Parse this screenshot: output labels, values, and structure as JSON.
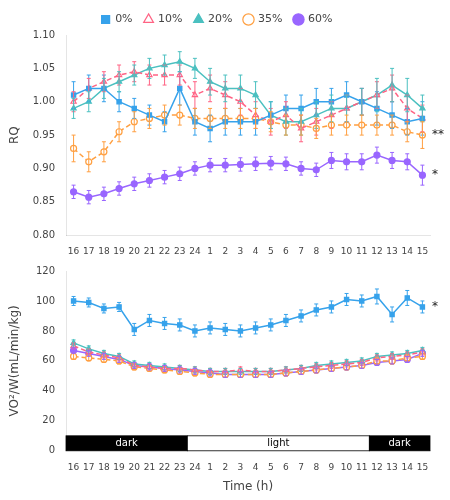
{
  "chart_data": [
    {
      "type": "line",
      "categories": [
        "16",
        "17",
        "18",
        "19",
        "20",
        "21",
        "22",
        "23",
        "24",
        "1",
        "2",
        "3",
        "4",
        "5",
        "6",
        "7",
        "8",
        "9",
        "10",
        "11",
        "12",
        "13",
        "14",
        "15"
      ],
      "series": [
        {
          "name": "0%",
          "marker": "square",
          "line_style": "solid",
          "values": [
            1.01,
            1.02,
            1.02,
            1.0,
            0.99,
            0.98,
            0.97,
            1.02,
            0.97,
            0.96,
            0.97,
            0.97,
            0.97,
            0.98,
            0.99,
            0.99,
            1.0,
            1.0,
            1.01,
            1.0,
            0.99,
            0.98,
            0.97,
            0.975
          ],
          "errors": [
            0.02,
            0.02,
            0.02,
            0.015,
            0.015,
            0.015,
            0.015,
            0.025,
            0.02,
            0.02,
            0.02,
            0.02,
            0.02,
            0.02,
            0.02,
            0.02,
            0.02,
            0.02,
            0.02,
            0.02,
            0.025,
            0.02,
            0.02,
            0.025
          ]
        },
        {
          "name": "10%",
          "marker": "triangle-open",
          "line_style": "dashed",
          "values": [
            1.0,
            1.02,
            1.03,
            1.04,
            1.045,
            1.04,
            1.04,
            1.04,
            1.01,
            1.02,
            1.01,
            1.0,
            0.98,
            0.97,
            0.98,
            0.96,
            0.97,
            0.98,
            0.99,
            1.0,
            1.01,
            1.02,
            0.99,
            0.975
          ],
          "errors": [
            0.015,
            0.015,
            0.015,
            0.015,
            0.015,
            0.015,
            0.015,
            0.015,
            0.02,
            0.02,
            0.02,
            0.02,
            0.02,
            0.02,
            0.02,
            0.02,
            0.02,
            0.02,
            0.02,
            0.02,
            0.02,
            0.02,
            0.02,
            0.02
          ]
        },
        {
          "name": "20%",
          "marker": "triangle",
          "line_style": "solid",
          "values": [
            0.99,
            1.0,
            1.02,
            1.03,
            1.04,
            1.05,
            1.055,
            1.06,
            1.05,
            1.03,
            1.02,
            1.02,
            1.01,
            0.98,
            0.97,
            0.97,
            0.98,
            0.99,
            0.99,
            1.0,
            1.01,
            1.025,
            1.01,
            0.99
          ],
          "errors": [
            0.015,
            0.015,
            0.015,
            0.015,
            0.015,
            0.015,
            0.015,
            0.015,
            0.015,
            0.02,
            0.02,
            0.02,
            0.02,
            0.02,
            0.02,
            0.02,
            0.02,
            0.02,
            0.02,
            0.02,
            0.025,
            0.025,
            0.025,
            0.02
          ]
        },
        {
          "name": "35%",
          "marker": "circle-open",
          "line_style": "dashed",
          "values": [
            0.93,
            0.91,
            0.925,
            0.955,
            0.97,
            0.975,
            0.98,
            0.98,
            0.975,
            0.975,
            0.975,
            0.975,
            0.975,
            0.97,
            0.965,
            0.965,
            0.96,
            0.965,
            0.965,
            0.965,
            0.965,
            0.965,
            0.955,
            0.95
          ],
          "errors": [
            0.02,
            0.015,
            0.015,
            0.015,
            0.015,
            0.015,
            0.015,
            0.015,
            0.015,
            0.015,
            0.015,
            0.015,
            0.015,
            0.015,
            0.015,
            0.015,
            0.015,
            0.015,
            0.015,
            0.015,
            0.015,
            0.015,
            0.015,
            0.02
          ]
        },
        {
          "name": "60%",
          "marker": "circle",
          "line_style": "solid",
          "values": [
            0.865,
            0.857,
            0.862,
            0.87,
            0.877,
            0.882,
            0.887,
            0.892,
            0.9,
            0.905,
            0.905,
            0.906,
            0.907,
            0.908,
            0.907,
            0.9,
            0.898,
            0.912,
            0.91,
            0.91,
            0.92,
            0.912,
            0.91,
            0.89
          ],
          "errors": [
            0.01,
            0.01,
            0.01,
            0.01,
            0.01,
            0.01,
            0.01,
            0.01,
            0.01,
            0.01,
            0.01,
            0.01,
            0.01,
            0.01,
            0.01,
            0.01,
            0.01,
            0.012,
            0.012,
            0.012,
            0.012,
            0.012,
            0.012,
            0.015
          ]
        }
      ],
      "ylabel": "RQ",
      "ylim": [
        0.8,
        1.1
      ],
      "yticks": [
        {
          "value": 0.8,
          "label": "0.80"
        },
        {
          "value": 0.85,
          "label": "0.85"
        },
        {
          "value": 0.9,
          "label": "0.90"
        },
        {
          "value": 0.95,
          "label": "0.95"
        },
        {
          "value": 1.0,
          "label": "1.00"
        },
        {
          "value": 1.05,
          "label": "1.05"
        },
        {
          "value": 1.1,
          "label": "1.10"
        }
      ],
      "grid": false,
      "legend": "top",
      "annotations": [
        {
          "text": "**",
          "x": "15",
          "y": 0.95
        },
        {
          "text": "*",
          "x": "15",
          "y": 0.89
        }
      ]
    },
    {
      "type": "line",
      "categories": [
        "16",
        "17",
        "18",
        "19",
        "20",
        "21",
        "22",
        "23",
        "24",
        "1",
        "2",
        "3",
        "4",
        "5",
        "6",
        "7",
        "8",
        "9",
        "10",
        "11",
        "12",
        "13",
        "14",
        "15"
      ],
      "series": [
        {
          "name": "0%",
          "marker": "square",
          "line_style": "solid",
          "values": [
            100,
            99,
            95,
            96,
            81,
            87,
            85,
            84,
            80,
            82,
            81,
            80,
            82,
            84,
            87,
            90,
            94,
            96,
            101,
            100,
            103,
            91,
            102,
            96
          ],
          "errors": [
            3,
            3,
            3,
            3,
            4,
            4,
            4,
            4,
            4,
            4,
            4,
            4,
            4,
            4,
            4,
            4,
            4,
            4,
            4,
            4,
            5,
            5,
            5,
            4
          ]
        },
        {
          "name": "10%",
          "marker": "triangle-open",
          "line_style": "dashed",
          "values": [
            70,
            66,
            64,
            62,
            57,
            56,
            55,
            55,
            54,
            53,
            53,
            54,
            53,
            53,
            54,
            55,
            56,
            57,
            58,
            59,
            62,
            63,
            64,
            66
          ],
          "errors": [
            2,
            2,
            2,
            2,
            2,
            2,
            2,
            2,
            2,
            2,
            2,
            2,
            2,
            2,
            2,
            2,
            2,
            2,
            2,
            2,
            2,
            2,
            2,
            2
          ]
        },
        {
          "name": "20%",
          "marker": "triangle",
          "line_style": "solid",
          "values": [
            72,
            68,
            65,
            63,
            58,
            57,
            56,
            55,
            54,
            53,
            53,
            53,
            53,
            53,
            54,
            55,
            57,
            58,
            59,
            60,
            63,
            64,
            65,
            67
          ],
          "errors": [
            2,
            2,
            2,
            2,
            2,
            2,
            2,
            2,
            2,
            2,
            2,
            2,
            2,
            2,
            2,
            2,
            2,
            2,
            2,
            2,
            2,
            2,
            2,
            2
          ]
        },
        {
          "name": "35%",
          "marker": "circle-open",
          "line_style": "dashed",
          "values": [
            63,
            62,
            61,
            60,
            56,
            55,
            54,
            53,
            52,
            51,
            51,
            51,
            51,
            51,
            52,
            53,
            54,
            55,
            56,
            57,
            60,
            60,
            62,
            63
          ],
          "errors": [
            2,
            2,
            2,
            2,
            2,
            2,
            2,
            2,
            2,
            2,
            2,
            2,
            2,
            2,
            2,
            2,
            2,
            2,
            2,
            2,
            2,
            2,
            2,
            2
          ]
        },
        {
          "name": "60%",
          "marker": "circle",
          "line_style": "solid",
          "values": [
            67,
            65,
            63,
            61,
            57,
            56,
            55,
            54,
            53,
            52,
            51,
            51,
            51,
            51,
            52,
            53,
            54,
            55,
            56,
            57,
            59,
            60,
            61,
            65
          ],
          "errors": [
            2,
            2,
            2,
            2,
            2,
            2,
            2,
            2,
            2,
            2,
            2,
            2,
            2,
            2,
            2,
            2,
            2,
            2,
            2,
            2,
            2,
            2,
            2,
            2
          ]
        }
      ],
      "xlabel": "Time (h)",
      "ylabel": "VO²/W(mL/min/kg)",
      "ylim": [
        0,
        120
      ],
      "yticks": [
        0,
        20,
        40,
        60,
        80,
        100,
        120
      ],
      "grid": false,
      "annotations": [
        {
          "text": "*",
          "x": "15",
          "y": 96
        }
      ],
      "bands": [
        {
          "label": "dark",
          "from": "16",
          "to": "23",
          "color": "black",
          "y": [
            0,
            10
          ]
        },
        {
          "label": "light",
          "from": "24",
          "to": "11",
          "color": "white",
          "y": [
            0,
            10
          ]
        },
        {
          "label": "dark",
          "from": "12",
          "to": "15",
          "color": "black",
          "y": [
            0,
            10
          ]
        }
      ]
    }
  ]
}
